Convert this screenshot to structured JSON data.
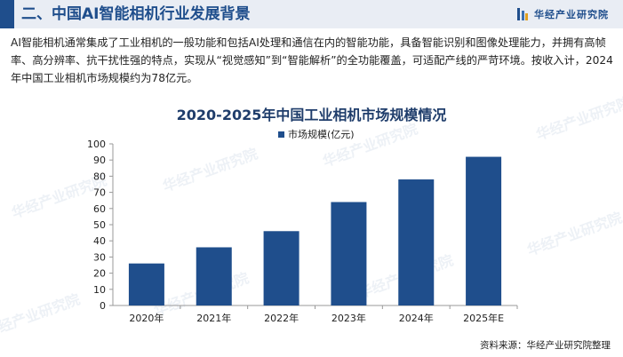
{
  "header": {
    "title": "二、中国AI智能相机行业发展背景",
    "brand": "华经产业研究院"
  },
  "intro": {
    "text": "AI智能相机通常集成了工业相机的一般功能和包括AI处理和通信在内的智能功能，具备智能识别和图像处理能力，并拥有高帧率、高分辨率、抗干扰性强的特点，实现从“视觉感知”到“智能解析”的全功能覆盖，可适配产线的严苛环境。按收入计，2024年中国工业相机市场规模约为78亿元。"
  },
  "watermark": "华经产业研究院",
  "source": "资料来源：华经产业研究院整理",
  "colors": {
    "accent": "#1f4e8c",
    "bar": "#1f4e8c"
  },
  "chart_data": {
    "type": "bar",
    "title": "2020-2025年中国工业相机市场规模情况",
    "categories": [
      "2020年",
      "2021年",
      "2022年",
      "2023年",
      "2024年",
      "2025年E"
    ],
    "series": [
      {
        "name": "市场规模(亿元)",
        "values": [
          26,
          36,
          46,
          64,
          78,
          92
        ]
      }
    ],
    "ylim": [
      0,
      100
    ],
    "yticks": [
      0,
      10,
      20,
      30,
      40,
      50,
      60,
      70,
      80,
      90,
      100
    ],
    "legend": "top-center",
    "grid": false
  }
}
